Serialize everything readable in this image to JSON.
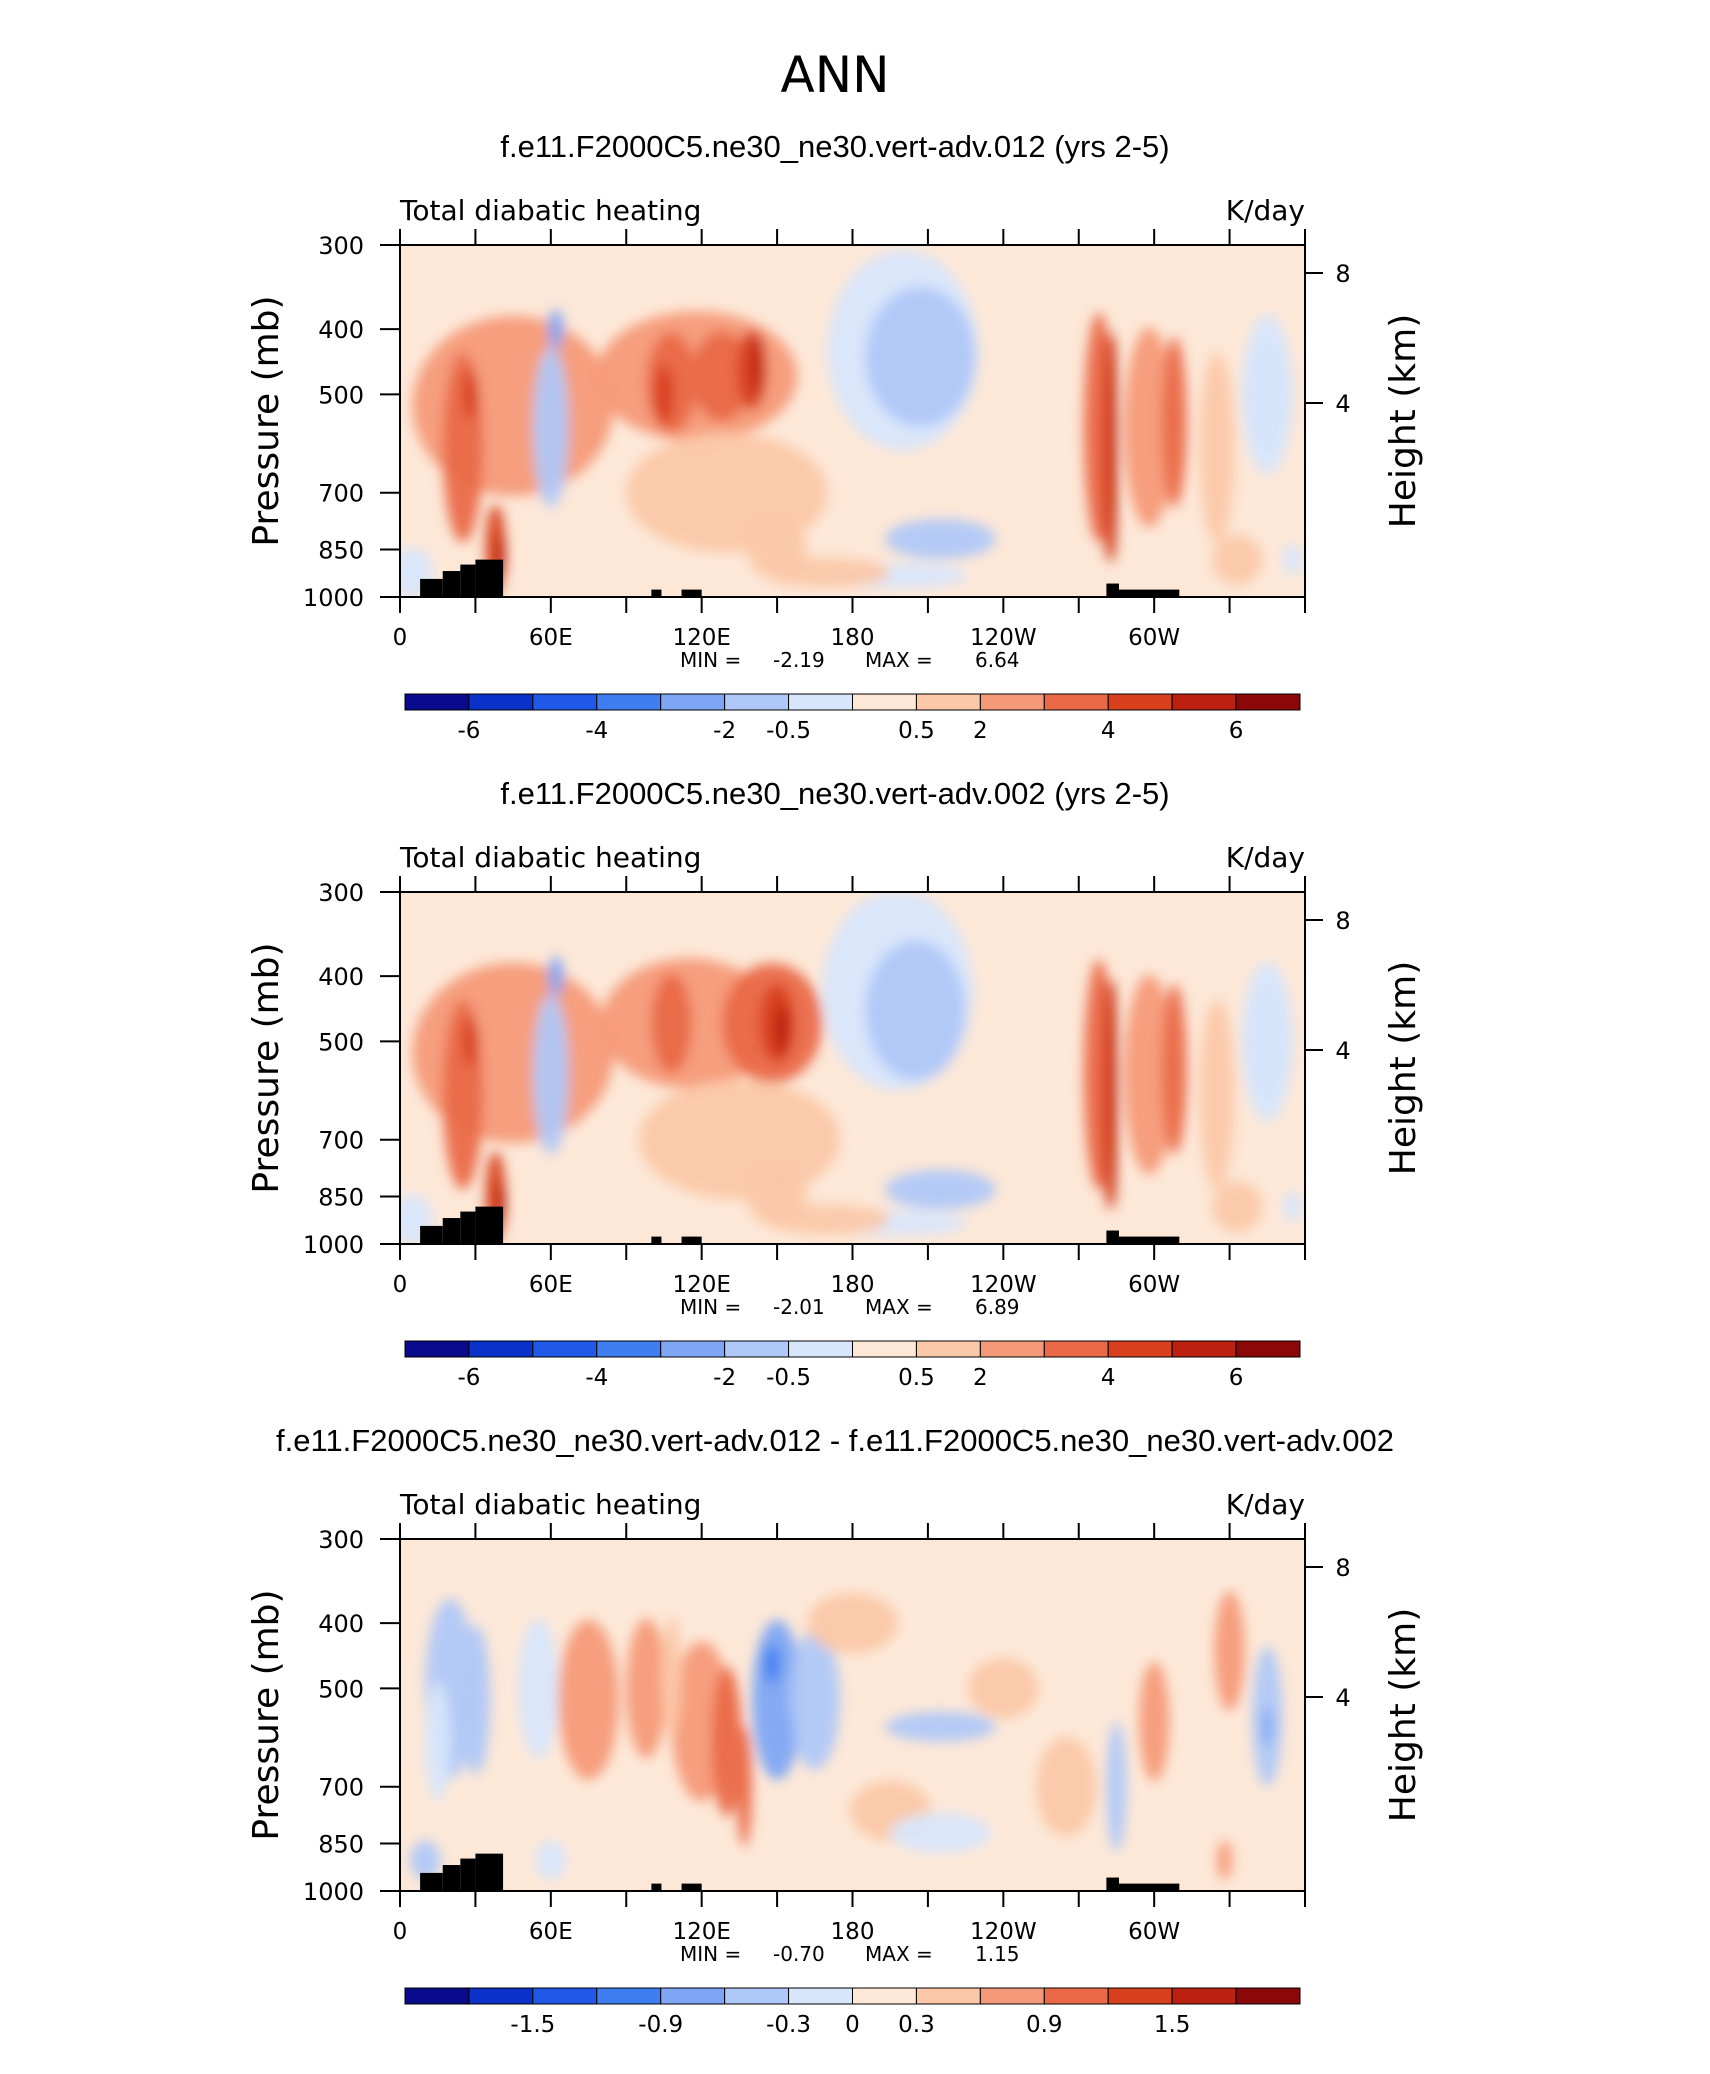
{
  "page_title": "ANN",
  "chart_data": [
    {
      "type": "heatmap",
      "title": "f.e11.F2000C5.ne30_ne30.vert-adv.012 (yrs 2-5)",
      "subtitle_left": "Total diabatic heating",
      "subtitle_right": "K/day",
      "ylabel": "Pressure (mb)",
      "y2label": "Height (km)",
      "x_ticks": [
        "0",
        "60E",
        "120E",
        "180",
        "120W",
        "60W"
      ],
      "y_ticks": [
        "300",
        "400",
        "500",
        "700",
        "850",
        "1000"
      ],
      "y2_ticks": [
        "8",
        "4"
      ],
      "min_label": "MIN =",
      "min_value": "-2.19",
      "max_label": "MAX =",
      "max_value": "6.64",
      "colorbar_labels": [
        "-6",
        "-4",
        "-2",
        "-0.5",
        "0.5",
        "2",
        "4",
        "6"
      ]
    },
    {
      "type": "heatmap",
      "title": "f.e11.F2000C5.ne30_ne30.vert-adv.002 (yrs 2-5)",
      "subtitle_left": "Total diabatic heating",
      "subtitle_right": "K/day",
      "ylabel": "Pressure (mb)",
      "y2label": "Height (km)",
      "x_ticks": [
        "0",
        "60E",
        "120E",
        "180",
        "120W",
        "60W"
      ],
      "y_ticks": [
        "300",
        "400",
        "500",
        "700",
        "850",
        "1000"
      ],
      "y2_ticks": [
        "8",
        "4"
      ],
      "min_label": "MIN =",
      "min_value": "-2.01",
      "max_label": "MAX =",
      "max_value": "6.89",
      "colorbar_labels": [
        "-6",
        "-4",
        "-2",
        "-0.5",
        "0.5",
        "2",
        "4",
        "6"
      ]
    },
    {
      "type": "heatmap",
      "title": "f.e11.F2000C5.ne30_ne30.vert-adv.012 - f.e11.F2000C5.ne30_ne30.vert-adv.002",
      "subtitle_left": "Total diabatic heating",
      "subtitle_right": "K/day",
      "ylabel": "Pressure (mb)",
      "y2label": "Height (km)",
      "x_ticks": [
        "0",
        "60E",
        "120E",
        "180",
        "120W",
        "60W"
      ],
      "y_ticks": [
        "300",
        "400",
        "500",
        "700",
        "850",
        "1000"
      ],
      "y2_ticks": [
        "8",
        "4"
      ],
      "min_label": "MIN =",
      "min_value": "-0.70",
      "max_label": "MAX =",
      "max_value": "1.15",
      "colorbar_labels": [
        "-1.5",
        "-0.9",
        "-0.3",
        "0",
        "0.3",
        "0.9",
        "1.5"
      ]
    }
  ],
  "colors": {
    "colorbar": [
      "#0a0a8c",
      "#0b32c8",
      "#2058e8",
      "#3f7ef0",
      "#7ea6f4",
      "#b0c8f8",
      "#d8e6fc",
      "#fde8d8",
      "#fbc8a8",
      "#f59a78",
      "#ea6a48",
      "#d8401e",
      "#bc2010",
      "#8c0808"
    ],
    "terrain": "#000000"
  }
}
